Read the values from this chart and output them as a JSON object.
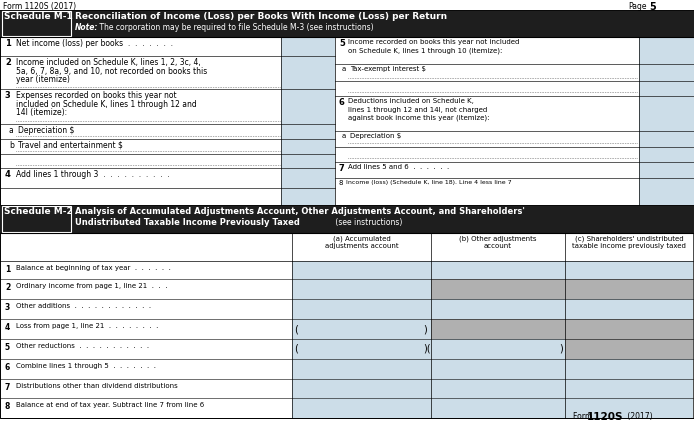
{
  "form_header": "Form 1120S (2017)",
  "page_label": "Page",
  "page_num": "5",
  "sched_m1_label": "Schedule M-1",
  "sched_m1_title": "Reconciliation of Income (Loss) per Books With Income (Loss) per Return",
  "sched_m1_note_bold": "Note:",
  "sched_m1_note_rest": " The corporation may be required to file Schedule M-3 (see instructions)",
  "m1_left": [
    {
      "num": "1",
      "text": "Net income (loss) per books  .  .  .  .  .  .  ."
    },
    {
      "num": "2",
      "text": "Income included on Schedule K, lines 1, 2, 3c, 4,\n5a, 6, 7, 8a, 9, and 10, not recorded on books this\nyear (itemize)"
    },
    {
      "num": "3",
      "text": "Expenses recorded on books this year not\nincluded on Schedule K, lines 1 through 12 and\n14l (itemize):"
    },
    {
      "num": "a",
      "sub": true,
      "text": "Depreciation $"
    },
    {
      "num": "b",
      "sub": true,
      "text": "Travel and entertainment $"
    },
    {
      "num": "4",
      "text": "Add lines 1 through 3  .  .  .  .  .  .  .  .  .  ."
    }
  ],
  "m1_right": [
    {
      "num": "5",
      "text": "Income recorded on books this year not included\non Schedule K, lines 1 through 10 (itemize):"
    },
    {
      "num": "a",
      "sub": true,
      "text": "Tax-exempt interest $"
    },
    {
      "num": "",
      "text": ""
    },
    {
      "num": "6",
      "text": "Deductions included on Schedule K,\nlines 1 through 12 and 14l, not charged\nagainst book income this year (itemize):"
    },
    {
      "num": "a",
      "sub": true,
      "text": "Depreciation $"
    },
    {
      "num": "",
      "text": ""
    },
    {
      "num": "7",
      "text": "Add lines 5 and 6  .  .  .  .  .  ."
    },
    {
      "num": "8",
      "text": "Income (loss) (Schedule K, line 18). Line 4 less line 7"
    }
  ],
  "sched_m2_label": "Schedule M-2",
  "sched_m2_title1": "Analysis of Accumulated Adjustments Account, Other Adjustments Account, and Shareholders'",
  "sched_m2_title2_bold": "Undistributed Taxable Income Previously Taxed",
  "sched_m2_title2_rest": " (see instructions)",
  "m2_col_a": "(a) Accumulated\nadjustments account",
  "m2_col_b": "(b) Other adjustments\naccount",
  "m2_col_c": "(c) Shareholders' undistributed\ntaxable income previously taxed",
  "m2_rows": [
    {
      "num": "1",
      "text": "Balance at beginning of tax year  .  .  .  .  .  ."
    },
    {
      "num": "2",
      "text": "Ordinary income from page 1, line 21  .  .  ."
    },
    {
      "num": "3",
      "text": "Other additions  .  .  .  .  .  .  .  .  .  .  .  ."
    },
    {
      "num": "4",
      "text": "Loss from page 1, line 21  .  .  .  .  .  .  .  ."
    },
    {
      "num": "5",
      "text": "Other reductions  .  .  .  .  .  .  .  .  .  .  ."
    },
    {
      "num": "6",
      "text": "Combine lines 1 through 5  .  .  .  .  .  .  ."
    },
    {
      "num": "7",
      "text": "Distributions other than dividend distributions"
    },
    {
      "num": "8",
      "text": "Balance at end of tax year. Subtract line 7 from line 6"
    }
  ],
  "form_footer": "Form ",
  "form_footer_bold": "1120S",
  "form_footer_year": " (2017)",
  "colors": {
    "black": "#000000",
    "white": "#ffffff",
    "dark_header": "#1e1e1e",
    "input_blue": "#ccdde8",
    "gray_cell": "#b0b0b0",
    "border": "#000000"
  }
}
